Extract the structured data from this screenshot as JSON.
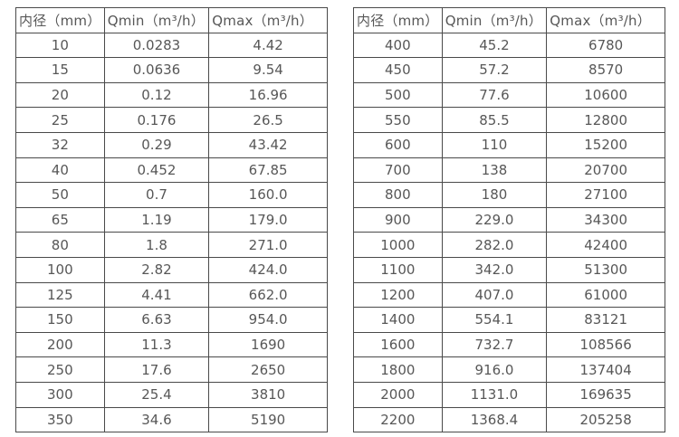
{
  "colors": {
    "border": "#4a4a4a",
    "text": "#575757",
    "background": "#ffffff"
  },
  "tables": [
    {
      "id": "flow-table-small-diameter",
      "headers": [
        "内径（mm）",
        "Qmin（m³/h）",
        "Qmax（m³/h）"
      ],
      "rows": [
        [
          "10",
          "0.0283",
          "4.42"
        ],
        [
          "15",
          "0.0636",
          "9.54"
        ],
        [
          "20",
          "0.12",
          "16.96"
        ],
        [
          "25",
          "0.176",
          "26.5"
        ],
        [
          "32",
          "0.29",
          "43.42"
        ],
        [
          "40",
          "0.452",
          "67.85"
        ],
        [
          "50",
          "0.7",
          "160.0"
        ],
        [
          "65",
          "1.19",
          "179.0"
        ],
        [
          "80",
          "1.8",
          "271.0"
        ],
        [
          "100",
          "2.82",
          "424.0"
        ],
        [
          "125",
          "4.41",
          "662.0"
        ],
        [
          "150",
          "6.63",
          "954.0"
        ],
        [
          "200",
          "11.3",
          "1690"
        ],
        [
          "250",
          "17.6",
          "2650"
        ],
        [
          "300",
          "25.4",
          "3810"
        ],
        [
          "350",
          "34.6",
          "5190"
        ]
      ]
    },
    {
      "id": "flow-table-large-diameter",
      "headers": [
        "内径（mm）",
        "Qmin（m³/h）",
        "Qmax（m³/h）"
      ],
      "rows": [
        [
          "400",
          "45.2",
          "6780"
        ],
        [
          "450",
          "57.2",
          "8570"
        ],
        [
          "500",
          "77.6",
          "10600"
        ],
        [
          "550",
          "85.5",
          "12800"
        ],
        [
          "600",
          "110",
          "15200"
        ],
        [
          "700",
          "138",
          "20700"
        ],
        [
          "800",
          "180",
          "27100"
        ],
        [
          "900",
          "229.0",
          "34300"
        ],
        [
          "1000",
          "282.0",
          "42400"
        ],
        [
          "1100",
          "342.0",
          "51300"
        ],
        [
          "1200",
          "407.0",
          "61000"
        ],
        [
          "1400",
          "554.1",
          "83121"
        ],
        [
          "1600",
          "732.7",
          "108566"
        ],
        [
          "1800",
          "916.0",
          "137404"
        ],
        [
          "2000",
          "1131.0",
          "169635"
        ],
        [
          "2200",
          "1368.4",
          "205258"
        ]
      ]
    }
  ]
}
